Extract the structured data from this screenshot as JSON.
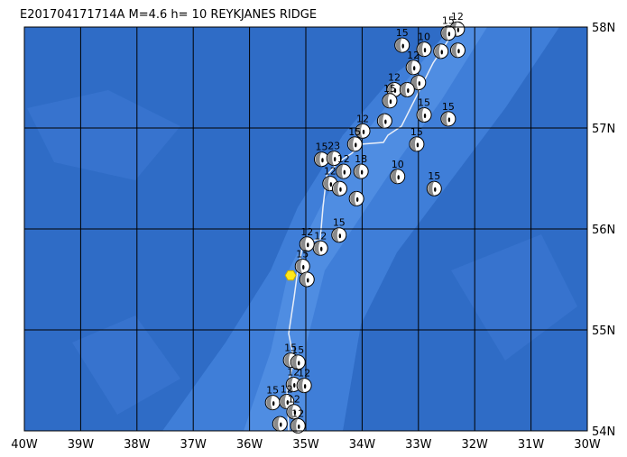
{
  "header": {
    "title": "E201704171714A  M=4.6  h= 10  REYKJANES RIDGE"
  },
  "map": {
    "xlim": [
      -40,
      -30
    ],
    "ylim": [
      54,
      58
    ],
    "xticks": [
      {
        "value": -40,
        "label": "40W"
      },
      {
        "value": -39,
        "label": "39W"
      },
      {
        "value": -38,
        "label": "38W"
      },
      {
        "value": -37,
        "label": "37W"
      },
      {
        "value": -36,
        "label": "36W"
      },
      {
        "value": -35,
        "label": "35W"
      },
      {
        "value": -34,
        "label": "34W"
      },
      {
        "value": -33,
        "label": "33W"
      },
      {
        "value": -32,
        "label": "32W"
      },
      {
        "value": -31,
        "label": "31W"
      },
      {
        "value": -30,
        "label": "30W"
      }
    ],
    "yticks": [
      {
        "value": 54,
        "label": "54N"
      },
      {
        "value": 55,
        "label": "55N"
      },
      {
        "value": 56,
        "label": "56N"
      },
      {
        "value": 57,
        "label": "57N"
      },
      {
        "value": 58,
        "label": "58N"
      }
    ]
  },
  "epicenter": {
    "lon": -35.27,
    "lat": 55.54
  },
  "events": [
    {
      "lon": -33.29,
      "lat": 57.82,
      "depth": "15"
    },
    {
      "lon": -32.31,
      "lat": 57.98,
      "depth": "12"
    },
    {
      "lon": -32.47,
      "lat": 57.94,
      "depth": "15"
    },
    {
      "lon": -32.9,
      "lat": 57.78,
      "depth": "10"
    },
    {
      "lon": -32.6,
      "lat": 57.76,
      "depth": null
    },
    {
      "lon": -32.3,
      "lat": 57.77,
      "depth": null
    },
    {
      "lon": -33.09,
      "lat": 57.6,
      "depth": "12"
    },
    {
      "lon": -33.0,
      "lat": 57.45,
      "depth": null
    },
    {
      "lon": -33.43,
      "lat": 57.38,
      "depth": "12"
    },
    {
      "lon": -33.51,
      "lat": 57.27,
      "depth": "15"
    },
    {
      "lon": -33.2,
      "lat": 57.38,
      "depth": null
    },
    {
      "lon": -32.9,
      "lat": 57.13,
      "depth": "15"
    },
    {
      "lon": -32.47,
      "lat": 57.09,
      "depth": "15"
    },
    {
      "lon": -33.6,
      "lat": 57.07,
      "depth": null
    },
    {
      "lon": -33.99,
      "lat": 56.97,
      "depth": "12"
    },
    {
      "lon": -34.13,
      "lat": 56.84,
      "depth": "15"
    },
    {
      "lon": -34.72,
      "lat": 56.69,
      "depth": "15"
    },
    {
      "lon": -34.5,
      "lat": 56.7,
      "depth": "23"
    },
    {
      "lon": -34.02,
      "lat": 56.57,
      "depth": "18"
    },
    {
      "lon": -34.33,
      "lat": 56.57,
      "depth": "12"
    },
    {
      "lon": -33.03,
      "lat": 56.84,
      "depth": "15"
    },
    {
      "lon": -33.37,
      "lat": 56.52,
      "depth": "10"
    },
    {
      "lon": -32.72,
      "lat": 56.4,
      "depth": "15"
    },
    {
      "lon": -34.57,
      "lat": 56.45,
      "depth": "12"
    },
    {
      "lon": -34.4,
      "lat": 56.4,
      "depth": null
    },
    {
      "lon": -34.1,
      "lat": 56.3,
      "depth": null
    },
    {
      "lon": -34.41,
      "lat": 55.94,
      "depth": "15"
    },
    {
      "lon": -34.74,
      "lat": 55.81,
      "depth": "12"
    },
    {
      "lon": -34.98,
      "lat": 55.85,
      "depth": "12"
    },
    {
      "lon": -35.06,
      "lat": 55.63,
      "depth": "15"
    },
    {
      "lon": -34.98,
      "lat": 55.5,
      "depth": null
    },
    {
      "lon": -35.27,
      "lat": 54.7,
      "depth": "15"
    },
    {
      "lon": -35.14,
      "lat": 54.68,
      "depth": "15"
    },
    {
      "lon": -35.22,
      "lat": 54.46,
      "depth": "12"
    },
    {
      "lon": -35.03,
      "lat": 54.45,
      "depth": "12"
    },
    {
      "lon": -35.59,
      "lat": 54.28,
      "depth": "15"
    },
    {
      "lon": -35.34,
      "lat": 54.29,
      "depth": "12"
    },
    {
      "lon": -35.21,
      "lat": 54.19,
      "depth": "12"
    },
    {
      "lon": -35.14,
      "lat": 54.05,
      "depth": "12"
    },
    {
      "lon": -35.46,
      "lat": 54.07,
      "depth": null
    }
  ]
}
